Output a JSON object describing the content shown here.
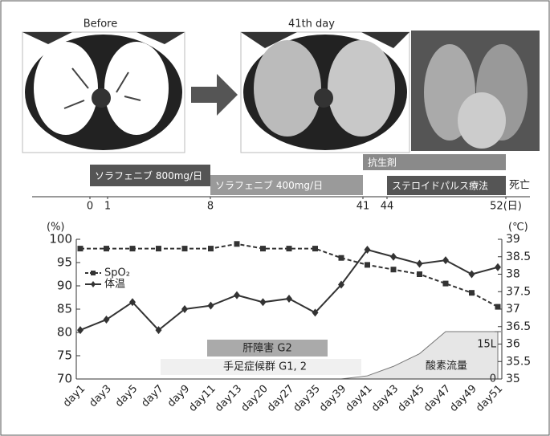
{
  "images": {
    "before_label": "Before",
    "after_label": "41th day"
  },
  "timeline": {
    "ticks": [
      0,
      1,
      8,
      41,
      44,
      {
        "value": 52,
        "label": "52(日)"
      }
    ],
    "bars": [
      {
        "label": "ソラフェニブ 800mg/日",
        "start": 0,
        "end": 8,
        "color": "#555555"
      },
      {
        "label": "ソラフェニブ 400mg/日",
        "start": 8,
        "end": 41,
        "color": "#9a9a9a"
      },
      {
        "label": "抗生剤",
        "start": 41,
        "end": 52,
        "color": "#8a8a8a"
      },
      {
        "label": "ステロイドパルス療法",
        "start": 44,
        "end": 52,
        "color": "#555555"
      }
    ],
    "death_label": "死亡"
  },
  "chart_data": {
    "type": "line",
    "y_unit": "(%)",
    "y2_unit": "(℃)",
    "categories": [
      "day1",
      "day3",
      "day5",
      "day7",
      "day9",
      "day11",
      "day13",
      "day20",
      "day27",
      "day35",
      "day39",
      "day41",
      "day43",
      "day45",
      "day47",
      "day49",
      "day51"
    ],
    "series": [
      {
        "name": "SpO₂",
        "color": "#333333",
        "values": [
          98,
          98,
          98,
          98,
          98,
          98,
          99,
          98,
          98,
          98,
          96,
          94.5,
          93.5,
          92.5,
          90.5,
          88.5,
          85.5
        ]
      },
      {
        "name": "体温",
        "color": "#333333",
        "axis": "y2",
        "values": [
          36.4,
          36.7,
          37.2,
          36.4,
          37.0,
          37.1,
          37.4,
          37.2,
          37.3,
          36.9,
          37.7,
          38.7,
          38.5,
          38.3,
          38.4,
          38.0,
          38.2
        ]
      }
    ],
    "ylim": [
      70,
      100
    ],
    "yticks": [
      70,
      75,
      80,
      85,
      90,
      95,
      100
    ],
    "y2lim": [
      35,
      39
    ],
    "y2ticks": [
      35,
      35.5,
      36,
      36.5,
      37,
      37.5,
      38,
      38.5,
      39
    ],
    "oxygen": {
      "name": "酸素流量",
      "values": [
        null,
        null,
        null,
        null,
        null,
        null,
        null,
        null,
        null,
        null,
        0,
        1,
        4,
        8,
        15,
        15,
        15
      ],
      "ylim": [
        0,
        15
      ],
      "yticks": [
        0,
        {
          "value": 15,
          "label": "15L"
        }
      ]
    },
    "annotations": [
      "肝障害 G2",
      "手足症候群 G1, 2"
    ]
  }
}
